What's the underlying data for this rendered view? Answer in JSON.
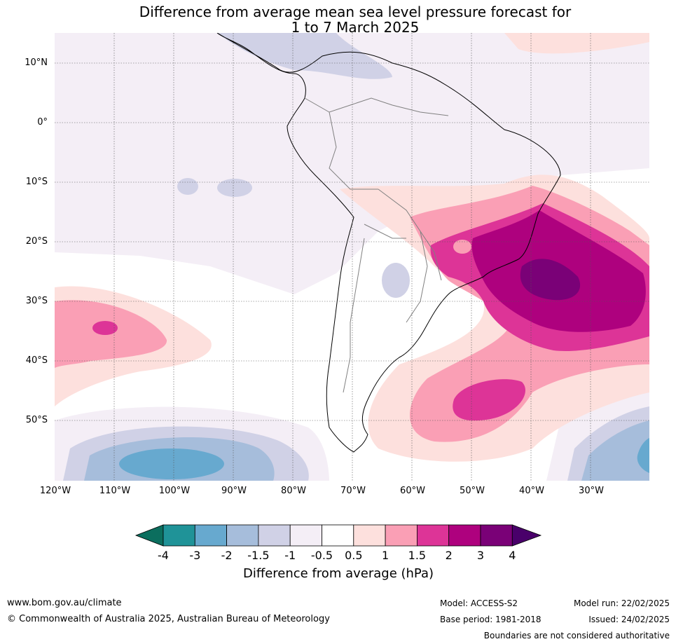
{
  "title_line1": "Difference from average mean sea level pressure forecast for",
  "title_line2": "1 to 7 March 2025",
  "lat_labels": [
    "10°N",
    "0°",
    "10°S",
    "20°S",
    "30°S",
    "40°S",
    "50°S"
  ],
  "lon_labels": [
    "120°W",
    "110°W",
    "100°W",
    "90°W",
    "80°W",
    "70°W",
    "60°W",
    "50°W",
    "40°W",
    "30°W"
  ],
  "colorbar": {
    "labels": [
      "-4",
      "-3",
      "-2",
      "-1.5",
      "-1",
      "-0.5",
      "0.5",
      "1",
      "1.5",
      "2",
      "3",
      "4"
    ],
    "colors": [
      "#0b6e5e",
      "#1f9398",
      "#67a9cf",
      "#a6bddb",
      "#d0d1e6",
      "#f4eef6",
      "#ffffff",
      "#fde0dd",
      "#fa9fb5",
      "#dd3497",
      "#ae017e",
      "#7a0177",
      "#49006a"
    ],
    "title": "Difference from average (hPa)"
  },
  "footer": {
    "website": "www.bom.gov.au/climate",
    "copyright": "© Commonwealth of Australia 2025, Australian Bureau of Meteorology",
    "model": "Model: ACCESS-S2",
    "base_period": "Base period: 1981-2018",
    "model_run": "Model run: 22/02/2025",
    "issued": "Issued: 24/02/2025",
    "disclaimer": "Boundaries are not considered authoritative"
  }
}
